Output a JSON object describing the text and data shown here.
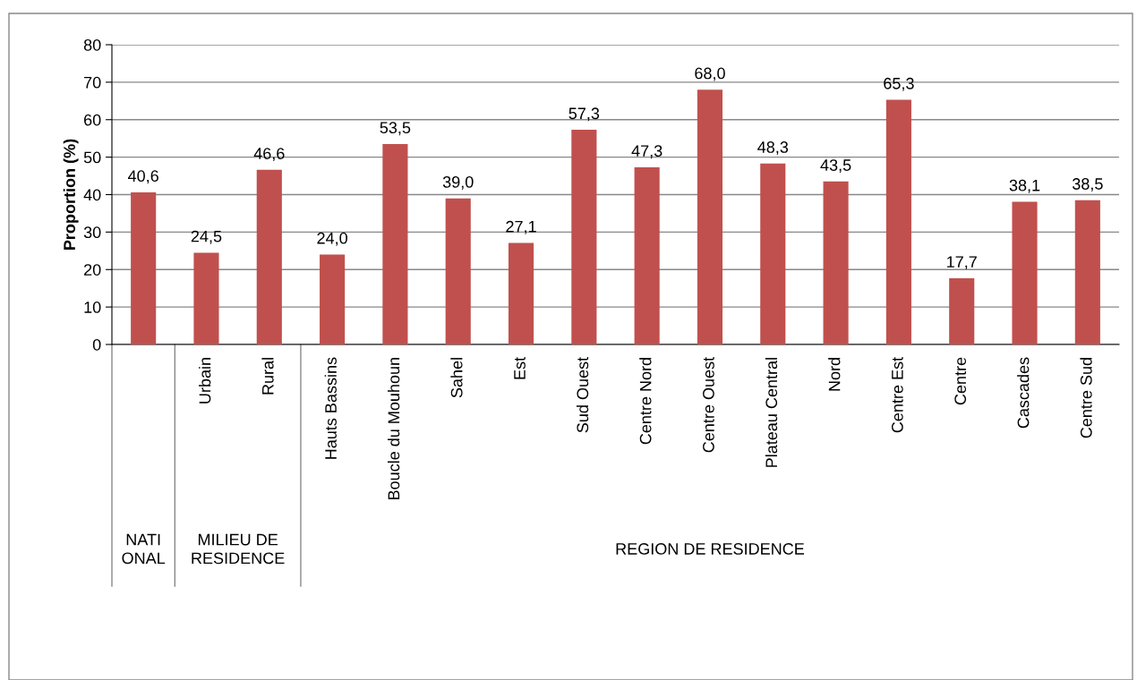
{
  "chart_data": {
    "type": "bar",
    "ylabel": "Proportion (%)",
    "categories": [
      null,
      "Urbain",
      "Rural",
      "Hauts Bassins",
      "Boucle du Mouhoun",
      "Sahel",
      "Est",
      "Sud Ouest",
      "Centre Nord",
      "Centre Ouest",
      "Plateau Central",
      "Nord",
      "Centre Est",
      "Centre",
      "Cascades",
      "Centre Sud"
    ],
    "values": [
      40.6,
      24.5,
      46.6,
      24.0,
      53.5,
      39.0,
      27.1,
      57.3,
      47.3,
      68.0,
      48.3,
      43.5,
      65.3,
      17.7,
      38.1,
      38.5
    ],
    "value_labels": [
      "40,6",
      "24,5",
      "46,6",
      "24,0",
      "53,5",
      "39,0",
      "27,1",
      "57,3",
      "47,3",
      "68,0",
      "48,3",
      "43,5",
      "65,3",
      "17,7",
      "38,1",
      "38,5"
    ],
    "color": "#c0504d",
    "ylim": [
      0,
      80
    ],
    "yticks": [
      0,
      10,
      20,
      30,
      40,
      50,
      60,
      70,
      80
    ],
    "grid": "y",
    "annotations": [
      "NATI\nONAL",
      "MILIEU DE\nRESIDENCE",
      "REGION DE RESIDENCE"
    ]
  }
}
